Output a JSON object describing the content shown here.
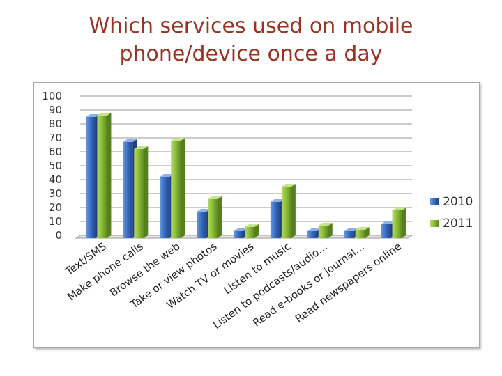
{
  "title_lines": [
    "Which services used on mobile",
    "phone/device once a day"
  ],
  "chart_data": {
    "type": "bar",
    "title": "Which services used on mobile phone/device once a day",
    "categories": [
      "Text/SMS",
      "Make phone calls",
      "Browse the web",
      "Take or view photos",
      "Watch TV or movies",
      "Listen to music",
      "Listen to podcasts/audio…",
      "Read e-books or journal…",
      "Read newspapers online"
    ],
    "series": [
      {
        "name": "2010",
        "values": [
          87,
          69,
          44,
          19,
          5,
          26,
          5,
          5,
          10
        ],
        "color": "#3a6fc4"
      },
      {
        "name": "2011",
        "values": [
          88,
          64,
          70,
          28,
          8,
          37,
          9,
          6,
          20
        ],
        "color": "#8fbf3a"
      }
    ],
    "ylim": [
      0,
      100
    ],
    "yticks": [
      0,
      10,
      20,
      30,
      40,
      50,
      60,
      70,
      80,
      90,
      100
    ],
    "grid": true,
    "legend_position": "right",
    "xlabel": "",
    "ylabel": ""
  }
}
